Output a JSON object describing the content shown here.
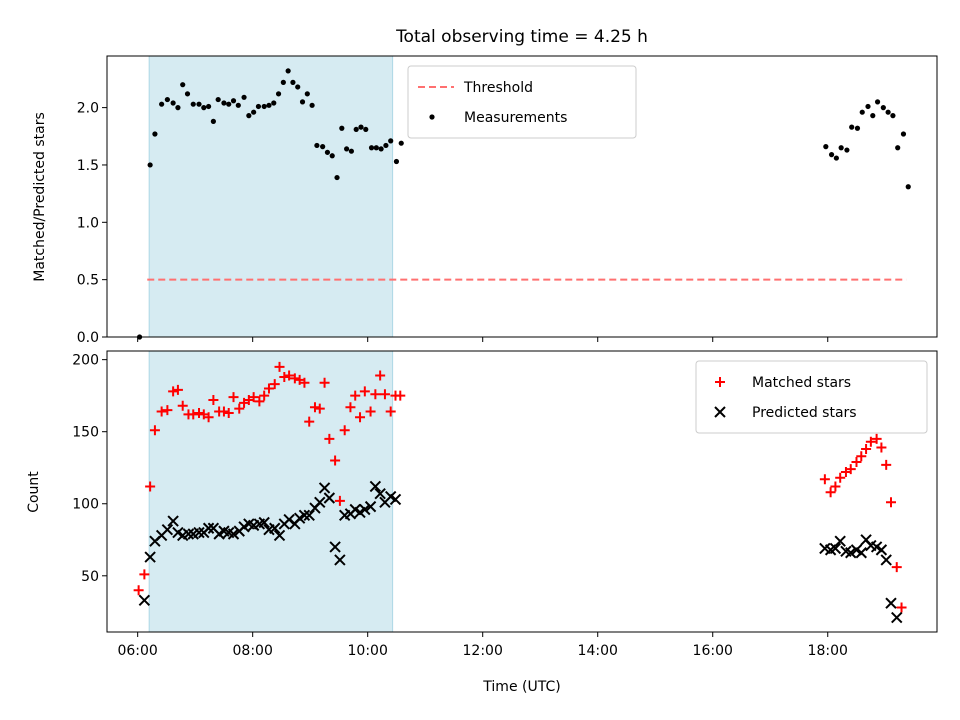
{
  "chart_data": [
    {
      "type": "scatter",
      "title": "Total observing time = 4.25 h",
      "xlabel": "",
      "ylabel": "Matched/Predicted stars",
      "ylim": [
        0,
        2.45
      ],
      "yticks": [
        "0.0",
        "0.5",
        "1.0",
        "1.5",
        "2.0"
      ],
      "ytick_values": [
        0,
        0.5,
        1.0,
        1.5,
        2.0
      ],
      "shaded_interval": [
        "06:12",
        "10:26"
      ],
      "shade_color": "#add8e6",
      "legend_position": "top-center",
      "threshold": {
        "name": "Threshold",
        "y": 0.5,
        "x_range": [
          "06:10",
          "19:22"
        ],
        "color": "#ff7070",
        "style": "dashed"
      },
      "series": [
        {
          "name": "Measurements",
          "marker": "dot",
          "color": "#000000",
          "points": [
            [
              "06:02",
              0.0
            ],
            [
              "06:13",
              1.5
            ],
            [
              "06:18",
              1.77
            ],
            [
              "06:25",
              2.03
            ],
            [
              "06:31",
              2.07
            ],
            [
              "06:37",
              2.04
            ],
            [
              "06:42",
              2.0
            ],
            [
              "06:47",
              2.2
            ],
            [
              "06:52",
              2.12
            ],
            [
              "06:58",
              2.03
            ],
            [
              "07:04",
              2.03
            ],
            [
              "07:09",
              2.0
            ],
            [
              "07:14",
              2.01
            ],
            [
              "07:19",
              1.88
            ],
            [
              "07:24",
              2.07
            ],
            [
              "07:30",
              2.04
            ],
            [
              "07:35",
              2.03
            ],
            [
              "07:40",
              2.06
            ],
            [
              "07:45",
              2.02
            ],
            [
              "07:51",
              2.09
            ],
            [
              "07:56",
              1.93
            ],
            [
              "08:01",
              1.96
            ],
            [
              "08:06",
              2.01
            ],
            [
              "08:12",
              2.01
            ],
            [
              "08:17",
              2.02
            ],
            [
              "08:22",
              2.04
            ],
            [
              "08:27",
              2.12
            ],
            [
              "08:32",
              2.22
            ],
            [
              "08:37",
              2.32
            ],
            [
              "08:42",
              2.22
            ],
            [
              "08:47",
              2.18
            ],
            [
              "08:52",
              2.05
            ],
            [
              "08:57",
              2.12
            ],
            [
              "09:02",
              2.02
            ],
            [
              "09:07",
              1.67
            ],
            [
              "09:13",
              1.66
            ],
            [
              "09:18",
              1.61
            ],
            [
              "09:23",
              1.58
            ],
            [
              "09:28",
              1.39
            ],
            [
              "09:33",
              1.82
            ],
            [
              "09:38",
              1.64
            ],
            [
              "09:43",
              1.62
            ],
            [
              "09:48",
              1.81
            ],
            [
              "09:53",
              1.83
            ],
            [
              "09:58",
              1.81
            ],
            [
              "10:04",
              1.65
            ],
            [
              "10:09",
              1.65
            ],
            [
              "10:14",
              1.64
            ],
            [
              "10:19",
              1.67
            ],
            [
              "10:24",
              1.71
            ],
            [
              "10:30",
              1.53
            ],
            [
              "10:35",
              1.69
            ],
            [
              "17:58",
              1.66
            ],
            [
              "18:04",
              1.59
            ],
            [
              "18:09",
              1.56
            ],
            [
              "18:14",
              1.65
            ],
            [
              "18:20",
              1.63
            ],
            [
              "18:25",
              1.83
            ],
            [
              "18:31",
              1.82
            ],
            [
              "18:36",
              1.96
            ],
            [
              "18:42",
              2.01
            ],
            [
              "18:47",
              1.93
            ],
            [
              "18:52",
              2.05
            ],
            [
              "18:58",
              2.0
            ],
            [
              "19:03",
              1.96
            ],
            [
              "19:08",
              1.93
            ],
            [
              "19:13",
              1.65
            ],
            [
              "19:19",
              1.77
            ],
            [
              "19:24",
              1.31
            ]
          ]
        }
      ]
    },
    {
      "type": "scatter",
      "title": "",
      "xlabel": "Time (UTC)",
      "ylabel": "Count",
      "ylim": [
        11,
        206
      ],
      "yticks": [
        "50",
        "100",
        "150",
        "200"
      ],
      "ytick_values": [
        50,
        100,
        150,
        200
      ],
      "xticks": [
        "06:00",
        "08:00",
        "10:00",
        "12:00",
        "14:00",
        "16:00",
        "18:00"
      ],
      "xlim": [
        "05:28",
        "19:54"
      ],
      "shaded_interval": [
        "06:12",
        "10:26"
      ],
      "shade_color": "#add8e6",
      "legend_position": "top-right",
      "series": [
        {
          "name": "Matched stars",
          "marker": "plus",
          "color": "#ff0000",
          "points": [
            [
              "06:01",
              40
            ],
            [
              "06:07",
              51
            ],
            [
              "06:13",
              112
            ],
            [
              "06:18",
              151
            ],
            [
              "06:25",
              164
            ],
            [
              "06:31",
              165
            ],
            [
              "06:37",
              178
            ],
            [
              "06:42",
              179
            ],
            [
              "06:47",
              168
            ],
            [
              "06:53",
              162
            ],
            [
              "06:58",
              162
            ],
            [
              "07:04",
              163
            ],
            [
              "07:09",
              162
            ],
            [
              "07:14",
              160
            ],
            [
              "07:19",
              172
            ],
            [
              "07:25",
              164
            ],
            [
              "07:30",
              164
            ],
            [
              "07:35",
              163
            ],
            [
              "07:40",
              174
            ],
            [
              "07:46",
              166
            ],
            [
              "07:51",
              170
            ],
            [
              "07:56",
              172
            ],
            [
              "08:01",
              174
            ],
            [
              "08:07",
              171
            ],
            [
              "08:12",
              175
            ],
            [
              "08:17",
              180
            ],
            [
              "08:23",
              183
            ],
            [
              "08:28",
              195
            ],
            [
              "08:33",
              188
            ],
            [
              "08:38",
              189
            ],
            [
              "08:44",
              187
            ],
            [
              "08:49",
              186
            ],
            [
              "08:54",
              184
            ],
            [
              "08:59",
              157
            ],
            [
              "09:05",
              167
            ],
            [
              "09:10",
              166
            ],
            [
              "09:15",
              184
            ],
            [
              "09:20",
              145
            ],
            [
              "09:26",
              130
            ],
            [
              "09:31",
              102
            ],
            [
              "09:36",
              151
            ],
            [
              "09:42",
              167
            ],
            [
              "09:47",
              175
            ],
            [
              "09:52",
              160
            ],
            [
              "09:57",
              178
            ],
            [
              "10:03",
              164
            ],
            [
              "10:08",
              176
            ],
            [
              "10:13",
              189
            ],
            [
              "10:18",
              176
            ],
            [
              "10:24",
              164
            ],
            [
              "10:29",
              175
            ],
            [
              "10:34",
              175
            ],
            [
              "17:57",
              117
            ],
            [
              "18:03",
              108
            ],
            [
              "18:08",
              112
            ],
            [
              "18:13",
              118
            ],
            [
              "18:19",
              122
            ],
            [
              "18:24",
              124
            ],
            [
              "18:30",
              129
            ],
            [
              "18:35",
              133
            ],
            [
              "18:40",
              138
            ],
            [
              "18:45",
              143
            ],
            [
              "18:51",
              145
            ],
            [
              "18:56",
              139
            ],
            [
              "19:01",
              127
            ],
            [
              "19:06",
              101
            ],
            [
              "19:12",
              56
            ],
            [
              "19:17",
              28
            ]
          ]
        },
        {
          "name": "Predicted stars",
          "marker": "x",
          "color": "#000000",
          "points": [
            [
              "06:07",
              33
            ],
            [
              "06:13",
              63
            ],
            [
              "06:18",
              74
            ],
            [
              "06:25",
              78
            ],
            [
              "06:31",
              82
            ],
            [
              "06:37",
              88
            ],
            [
              "06:42",
              80
            ],
            [
              "06:47",
              78
            ],
            [
              "06:53",
              79
            ],
            [
              "06:58",
              79
            ],
            [
              "07:04",
              80
            ],
            [
              "07:09",
              80
            ],
            [
              "07:14",
              83
            ],
            [
              "07:19",
              83
            ],
            [
              "07:25",
              79
            ],
            [
              "07:30",
              81
            ],
            [
              "07:35",
              80
            ],
            [
              "07:40",
              79
            ],
            [
              "07:46",
              81
            ],
            [
              "07:51",
              84
            ],
            [
              "07:56",
              86
            ],
            [
              "08:01",
              85
            ],
            [
              "08:07",
              86
            ],
            [
              "08:12",
              87
            ],
            [
              "08:17",
              82
            ],
            [
              "08:23",
              83
            ],
            [
              "08:28",
              78
            ],
            [
              "08:33",
              86
            ],
            [
              "08:38",
              89
            ],
            [
              "08:44",
              86
            ],
            [
              "08:49",
              90
            ],
            [
              "08:54",
              92
            ],
            [
              "08:59",
              92
            ],
            [
              "09:05",
              97
            ],
            [
              "09:10",
              101
            ],
            [
              "09:15",
              111
            ],
            [
              "09:20",
              104
            ],
            [
              "09:26",
              70
            ],
            [
              "09:31",
              61
            ],
            [
              "09:36",
              92
            ],
            [
              "09:42",
              93
            ],
            [
              "09:47",
              96
            ],
            [
              "09:52",
              94
            ],
            [
              "09:57",
              96
            ],
            [
              "10:03",
              98
            ],
            [
              "10:08",
              112
            ],
            [
              "10:13",
              107
            ],
            [
              "10:18",
              101
            ],
            [
              "10:24",
              105
            ],
            [
              "10:29",
              103
            ],
            [
              "17:57",
              69
            ],
            [
              "18:03",
              68
            ],
            [
              "18:08",
              69
            ],
            [
              "18:13",
              74
            ],
            [
              "18:19",
              67
            ],
            [
              "18:24",
              66
            ],
            [
              "18:30",
              68
            ],
            [
              "18:35",
              66
            ],
            [
              "18:40",
              75
            ],
            [
              "18:45",
              71
            ],
            [
              "18:51",
              70
            ],
            [
              "18:56",
              68
            ],
            [
              "19:01",
              61
            ],
            [
              "19:06",
              31
            ],
            [
              "19:12",
              21
            ]
          ]
        }
      ]
    }
  ]
}
